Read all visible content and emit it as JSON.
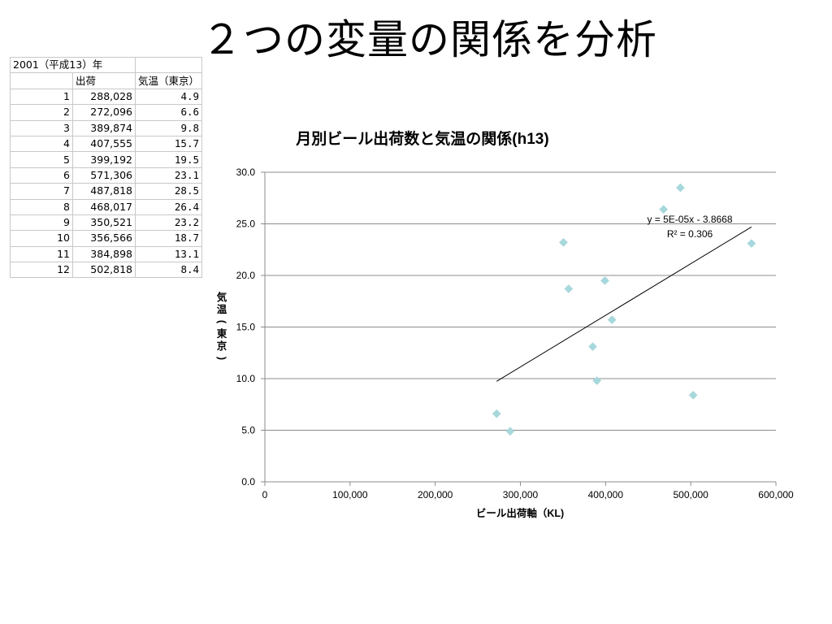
{
  "slide": {
    "title": "２つの変量の関係を分析"
  },
  "sheet": {
    "title": "2001（平成13）年",
    "headers": [
      "",
      "出荷",
      "気温（東京）"
    ],
    "rows": [
      [
        "1",
        "288,028",
        "4.9"
      ],
      [
        "2",
        "272,096",
        "6.6"
      ],
      [
        "3",
        "389,874",
        "9.8"
      ],
      [
        "4",
        "407,555",
        "15.7"
      ],
      [
        "5",
        "399,192",
        "19.5"
      ],
      [
        "6",
        "571,306",
        "23.1"
      ],
      [
        "7",
        "487,818",
        "28.5"
      ],
      [
        "8",
        "468,017",
        "26.4"
      ],
      [
        "9",
        "350,521",
        "23.2"
      ],
      [
        "10",
        "356,566",
        "18.7"
      ],
      [
        "11",
        "384,898",
        "13.1"
      ],
      [
        "12",
        "502,818",
        "8.4"
      ]
    ]
  },
  "chart_data": {
    "type": "scatter",
    "title": "月別ビール出荷数と気温の関係(h13)",
    "xlabel": "ビール出荷軸（KL)",
    "ylabel": "気温(東京)",
    "xlim": [
      0,
      600000
    ],
    "ylim": [
      0,
      30
    ],
    "xticks": [
      "0",
      "100,000",
      "200,000",
      "300,000",
      "400,000",
      "500,000",
      "600,000"
    ],
    "yticks": [
      "0.0",
      "5.0",
      "10.0",
      "15.0",
      "20.0",
      "25.0",
      "30.0"
    ],
    "grid": "horizontal",
    "marker_color": "#a7d8dc",
    "points": [
      {
        "x": 288028,
        "y": 4.9
      },
      {
        "x": 272096,
        "y": 6.6
      },
      {
        "x": 389874,
        "y": 9.8
      },
      {
        "x": 407555,
        "y": 15.7
      },
      {
        "x": 399192,
        "y": 19.5
      },
      {
        "x": 571306,
        "y": 23.1
      },
      {
        "x": 487818,
        "y": 28.5
      },
      {
        "x": 468017,
        "y": 26.4
      },
      {
        "x": 350521,
        "y": 23.2
      },
      {
        "x": 356566,
        "y": 18.7
      },
      {
        "x": 384898,
        "y": 13.1
      },
      {
        "x": 502818,
        "y": 8.4
      }
    ],
    "trendline": {
      "type": "linear",
      "equation": "y = 5E-05x - 3.8668",
      "r_squared": "R² = 0.306",
      "from": {
        "x": 272096,
        "y": 9.74
      },
      "to": {
        "x": 571306,
        "y": 24.7
      }
    }
  }
}
